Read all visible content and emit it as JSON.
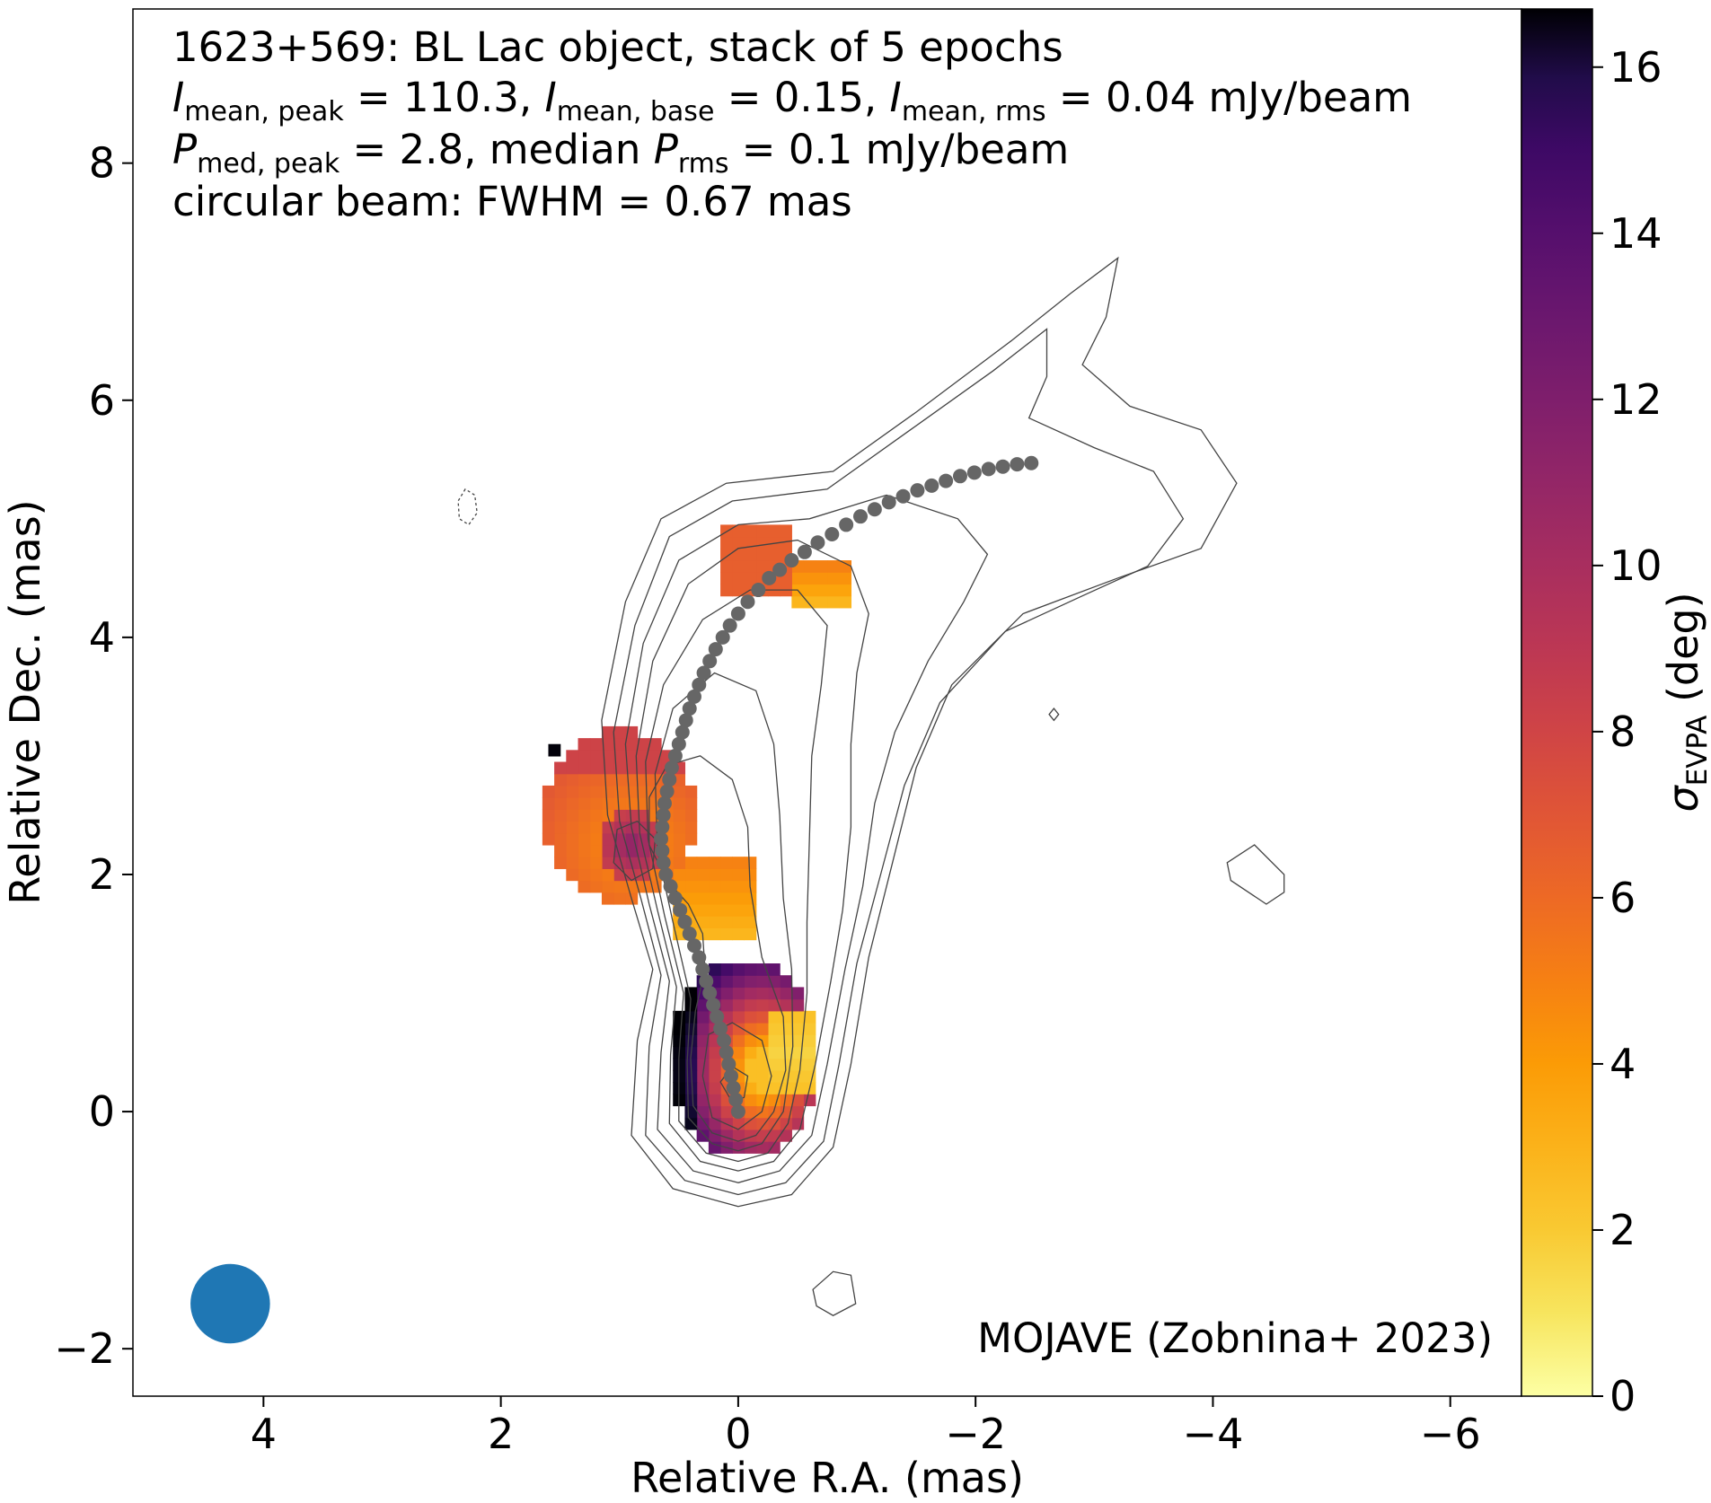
{
  "chart_data": {
    "type": "heatmap",
    "annotations": {
      "line1": "1623+569: BL Lac object, stack of 5 epochs",
      "line2": {
        "I": "I",
        "sub_peak": "mean, peak",
        "a": " = 110.3, ",
        "sub_base": "mean, base",
        "b": " = 0.15, ",
        "sub_rms": "mean, rms",
        "c": " = 0.04 mJy/beam"
      },
      "line3": {
        "P": "P",
        "sub_peak": "med, peak",
        "a": " = 2.8, median ",
        "sub_rms": "rms",
        "b": " = 0.1 mJy/beam"
      },
      "line4": "circular beam: FWHM = 0.67 mas",
      "credit": "MOJAVE (Zobnina+ 2023)"
    },
    "xlabel": "Relative R.A. (mas)",
    "ylabel": "Relative Dec. (mas)",
    "colorbar_label": {
      "sigma": "σ",
      "sub": "EVPA",
      "unit": " (deg)"
    },
    "xlim": [
      5.1,
      -6.6
    ],
    "ylim": [
      -2.4,
      9.3
    ],
    "x_ticks": [
      4,
      2,
      0,
      -2,
      -4,
      -6
    ],
    "y_ticks": [
      -2,
      0,
      2,
      4,
      6,
      8
    ],
    "x_tick_labels": [
      "4",
      "2",
      "0",
      "−2",
      "−4",
      "−6"
    ],
    "y_tick_labels": [
      "−2",
      "0",
      "2",
      "4",
      "6",
      "8"
    ],
    "colorbar_range": [
      0,
      16.7
    ],
    "colorbar_ticks": [
      0,
      2,
      4,
      6,
      8,
      10,
      12,
      14,
      16
    ],
    "colorbar_tick_labels": [
      "0",
      "2",
      "4",
      "6",
      "8",
      "10",
      "12",
      "14",
      "16"
    ],
    "colormap": "inferno_r",
    "beam": {
      "ra": 4.28,
      "dec": -1.62,
      "fwhm": 0.67,
      "color": "#1f77b4"
    },
    "ridge_line_color": "#666666",
    "ridge_line": [
      [
        0.0,
        0.0
      ],
      [
        0.02,
        0.1
      ],
      [
        0.04,
        0.2
      ],
      [
        0.06,
        0.3
      ],
      [
        0.08,
        0.4
      ],
      [
        0.1,
        0.5
      ],
      [
        0.12,
        0.6
      ],
      [
        0.15,
        0.7
      ],
      [
        0.18,
        0.8
      ],
      [
        0.21,
        0.9
      ],
      [
        0.24,
        1.0
      ],
      [
        0.27,
        1.1
      ],
      [
        0.3,
        1.2
      ],
      [
        0.33,
        1.3
      ],
      [
        0.37,
        1.4
      ],
      [
        0.41,
        1.5
      ],
      [
        0.45,
        1.6
      ],
      [
        0.49,
        1.7
      ],
      [
        0.53,
        1.8
      ],
      [
        0.57,
        1.9
      ],
      [
        0.61,
        2.0
      ],
      [
        0.63,
        2.1
      ],
      [
        0.64,
        2.2
      ],
      [
        0.65,
        2.3
      ],
      [
        0.64,
        2.4
      ],
      [
        0.63,
        2.5
      ],
      [
        0.62,
        2.6
      ],
      [
        0.6,
        2.7
      ],
      [
        0.58,
        2.8
      ],
      [
        0.56,
        2.9
      ],
      [
        0.53,
        3.0
      ],
      [
        0.5,
        3.1
      ],
      [
        0.47,
        3.2
      ],
      [
        0.44,
        3.3
      ],
      [
        0.41,
        3.4
      ],
      [
        0.37,
        3.5
      ],
      [
        0.33,
        3.6
      ],
      [
        0.29,
        3.7
      ],
      [
        0.24,
        3.8
      ],
      [
        0.19,
        3.9
      ],
      [
        0.13,
        4.0
      ],
      [
        0.07,
        4.1
      ],
      [
        0.0,
        4.2
      ],
      [
        -0.08,
        4.3
      ],
      [
        -0.17,
        4.4
      ],
      [
        -0.26,
        4.5
      ],
      [
        -0.35,
        4.57
      ],
      [
        -0.45,
        4.65
      ],
      [
        -0.56,
        4.72
      ],
      [
        -0.67,
        4.8
      ],
      [
        -0.79,
        4.87
      ],
      [
        -0.91,
        4.95
      ],
      [
        -1.03,
        5.02
      ],
      [
        -1.15,
        5.08
      ],
      [
        -1.27,
        5.14
      ],
      [
        -1.39,
        5.19
      ],
      [
        -1.51,
        5.24
      ],
      [
        -1.63,
        5.28
      ],
      [
        -1.75,
        5.32
      ],
      [
        -1.87,
        5.36
      ],
      [
        -1.99,
        5.39
      ],
      [
        -2.11,
        5.42
      ],
      [
        -2.23,
        5.44
      ],
      [
        -2.35,
        5.46
      ],
      [
        -2.47,
        5.47
      ]
    ],
    "contours": [
      [
        [
          0.0,
          -0.8
        ],
        [
          0.55,
          -0.65
        ],
        [
          0.9,
          -0.2
        ],
        [
          0.85,
          0.6
        ],
        [
          0.72,
          1.2
        ],
        [
          0.9,
          1.8
        ],
        [
          1.1,
          2.5
        ],
        [
          1.15,
          3.3
        ],
        [
          0.95,
          4.3
        ],
        [
          0.65,
          5.0
        ],
        [
          0.1,
          5.3
        ],
        [
          -0.8,
          5.4
        ],
        [
          -1.5,
          5.9
        ],
        [
          -2.3,
          6.5
        ],
        [
          -2.8,
          6.9
        ],
        [
          -3.2,
          7.2
        ],
        [
          -3.1,
          6.7
        ],
        [
          -2.9,
          6.3
        ],
        [
          -3.3,
          5.95
        ],
        [
          -3.9,
          5.75
        ],
        [
          -4.2,
          5.3
        ],
        [
          -3.9,
          4.75
        ],
        [
          -3.2,
          4.5
        ],
        [
          -2.4,
          4.2
        ],
        [
          -1.8,
          3.6
        ],
        [
          -1.5,
          2.9
        ],
        [
          -1.3,
          2.1
        ],
        [
          -1.1,
          1.3
        ],
        [
          -0.95,
          0.4
        ],
        [
          -0.8,
          -0.3
        ],
        [
          -0.45,
          -0.7
        ]
      ],
      [
        [
          0.0,
          -0.7
        ],
        [
          0.45,
          -0.58
        ],
        [
          0.78,
          -0.2
        ],
        [
          0.75,
          0.55
        ],
        [
          0.65,
          1.15
        ],
        [
          0.82,
          1.8
        ],
        [
          1.0,
          2.45
        ],
        [
          1.05,
          3.2
        ],
        [
          0.87,
          4.1
        ],
        [
          0.58,
          4.85
        ],
        [
          0.05,
          5.15
        ],
        [
          -0.75,
          5.25
        ],
        [
          -1.45,
          5.75
        ],
        [
          -2.15,
          6.25
        ],
        [
          -2.6,
          6.6
        ],
        [
          -2.6,
          6.2
        ],
        [
          -2.45,
          5.85
        ],
        [
          -3.0,
          5.6
        ],
        [
          -3.5,
          5.4
        ],
        [
          -3.75,
          5.0
        ],
        [
          -3.45,
          4.6
        ],
        [
          -2.9,
          4.35
        ],
        [
          -2.25,
          4.05
        ],
        [
          -1.7,
          3.45
        ],
        [
          -1.4,
          2.75
        ],
        [
          -1.2,
          2.0
        ],
        [
          -1.0,
          1.25
        ],
        [
          -0.85,
          0.4
        ],
        [
          -0.72,
          -0.25
        ],
        [
          -0.4,
          -0.6
        ]
      ],
      [
        [
          0.0,
          -0.6
        ],
        [
          0.38,
          -0.5
        ],
        [
          0.68,
          -0.15
        ],
        [
          0.65,
          0.5
        ],
        [
          0.58,
          1.1
        ],
        [
          0.75,
          1.75
        ],
        [
          0.9,
          2.4
        ],
        [
          0.95,
          3.1
        ],
        [
          0.8,
          3.95
        ],
        [
          0.5,
          4.65
        ],
        [
          0.0,
          4.95
        ],
        [
          -0.6,
          5.0
        ],
        [
          -1.25,
          5.2
        ],
        [
          -1.85,
          5.0
        ],
        [
          -2.1,
          4.7
        ],
        [
          -1.9,
          4.3
        ],
        [
          -1.6,
          3.8
        ],
        [
          -1.32,
          3.2
        ],
        [
          -1.15,
          2.6
        ],
        [
          -1.05,
          1.9
        ],
        [
          -0.9,
          1.2
        ],
        [
          -0.75,
          0.4
        ],
        [
          -0.62,
          -0.2
        ],
        [
          -0.35,
          -0.5
        ]
      ],
      [
        [
          0.0,
          -0.5
        ],
        [
          0.32,
          -0.42
        ],
        [
          0.58,
          -0.1
        ],
        [
          0.57,
          0.48
        ],
        [
          0.52,
          1.05
        ],
        [
          0.68,
          1.7
        ],
        [
          0.83,
          2.35
        ],
        [
          0.86,
          3.0
        ],
        [
          0.72,
          3.8
        ],
        [
          0.42,
          4.45
        ],
        [
          0.0,
          4.75
        ],
        [
          -0.5,
          4.82
        ],
        [
          -0.95,
          4.6
        ],
        [
          -1.1,
          4.2
        ],
        [
          -1.0,
          3.7
        ],
        [
          -0.95,
          3.1
        ],
        [
          -0.95,
          2.4
        ],
        [
          -0.88,
          1.7
        ],
        [
          -0.78,
          1.1
        ],
        [
          -0.65,
          0.4
        ],
        [
          -0.52,
          -0.15
        ],
        [
          -0.3,
          -0.42
        ]
      ],
      [
        [
          0.0,
          -0.42
        ],
        [
          0.27,
          -0.35
        ],
        [
          0.5,
          -0.08
        ],
        [
          0.5,
          0.45
        ],
        [
          0.46,
          1.0
        ],
        [
          0.62,
          1.65
        ],
        [
          0.76,
          2.3
        ],
        [
          0.78,
          2.95
        ],
        [
          0.63,
          3.6
        ],
        [
          0.3,
          4.15
        ],
        [
          -0.1,
          4.4
        ],
        [
          -0.5,
          4.4
        ],
        [
          -0.75,
          4.1
        ],
        [
          -0.7,
          3.6
        ],
        [
          -0.62,
          3.0
        ],
        [
          -0.6,
          2.3
        ],
        [
          -0.58,
          1.6
        ],
        [
          -0.58,
          1.0
        ],
        [
          -0.52,
          0.35
        ],
        [
          -0.42,
          -0.1
        ],
        [
          -0.25,
          -0.35
        ]
      ],
      [
        [
          0.0,
          -0.33
        ],
        [
          0.22,
          -0.27
        ],
        [
          0.42,
          -0.05
        ],
        [
          0.43,
          0.42
        ],
        [
          0.4,
          0.95
        ],
        [
          0.55,
          1.6
        ],
        [
          0.68,
          2.2
        ],
        [
          0.7,
          2.85
        ],
        [
          0.55,
          3.4
        ],
        [
          0.2,
          3.7
        ],
        [
          -0.15,
          3.55
        ],
        [
          -0.3,
          3.1
        ],
        [
          -0.35,
          2.5
        ],
        [
          -0.38,
          1.8
        ],
        [
          -0.45,
          1.2
        ],
        [
          -0.46,
          0.55
        ],
        [
          -0.38,
          0.0
        ],
        [
          -0.2,
          -0.27
        ]
      ],
      [
        [
          0.0,
          -0.25
        ],
        [
          0.22,
          -0.18
        ],
        [
          0.38,
          0.05
        ],
        [
          0.4,
          0.45
        ],
        [
          0.36,
          0.85
        ],
        [
          0.28,
          1.2
        ],
        [
          0.3,
          1.5
        ],
        [
          0.42,
          1.75
        ],
        [
          0.6,
          1.95
        ],
        [
          0.75,
          2.25
        ],
        [
          0.75,
          2.65
        ],
        [
          0.6,
          2.92
        ],
        [
          0.32,
          3.0
        ],
        [
          0.05,
          2.8
        ],
        [
          -0.08,
          2.4
        ],
        [
          -0.1,
          1.9
        ],
        [
          -0.2,
          1.3
        ],
        [
          -0.38,
          0.8
        ],
        [
          -0.4,
          0.35
        ],
        [
          -0.3,
          0.0
        ],
        [
          -0.15,
          -0.2
        ]
      ],
      [
        [
          0.0,
          -0.15
        ],
        [
          0.22,
          -0.05
        ],
        [
          0.3,
          0.3
        ],
        [
          0.25,
          0.65
        ],
        [
          0.05,
          0.75
        ],
        [
          -0.2,
          0.6
        ],
        [
          -0.28,
          0.3
        ],
        [
          -0.2,
          0.0
        ]
      ],
      [
        [
          0.05,
          0.08
        ],
        [
          0.15,
          0.25
        ],
        [
          0.05,
          0.38
        ],
        [
          -0.08,
          0.3
        ],
        [
          -0.05,
          0.12
        ]
      ],
      [
        [
          0.9,
          1.95
        ],
        [
          1.05,
          2.1
        ],
        [
          1.02,
          2.38
        ],
        [
          0.85,
          2.45
        ],
        [
          0.7,
          2.3
        ],
        [
          0.72,
          2.05
        ]
      ],
      [
        [
          -0.63,
          -1.5
        ],
        [
          -0.8,
          -1.35
        ],
        [
          -0.95,
          -1.38
        ],
        [
          -0.99,
          -1.62
        ],
        [
          -0.8,
          -1.72
        ],
        [
          -0.66,
          -1.64
        ]
      ],
      [
        [
          -4.35,
          2.25
        ],
        [
          -4.6,
          2.0
        ],
        [
          -4.6,
          1.85
        ],
        [
          -4.45,
          1.75
        ],
        [
          -4.15,
          1.95
        ],
        [
          -4.12,
          2.1
        ]
      ],
      [
        [
          -2.62,
          3.35
        ],
        [
          -2.66,
          3.4
        ],
        [
          -2.7,
          3.35
        ],
        [
          -2.66,
          3.3
        ]
      ]
    ],
    "dashed_contour": [
      [
        2.3,
        5.25
      ],
      [
        2.36,
        5.15
      ],
      [
        2.35,
        5.0
      ],
      [
        2.27,
        4.95
      ],
      [
        2.2,
        5.05
      ],
      [
        2.22,
        5.2
      ]
    ],
    "pixels": [
      {
        "ra": 0.0,
        "dec": 0.0,
        "v": 4.5
      }
    ]
  }
}
